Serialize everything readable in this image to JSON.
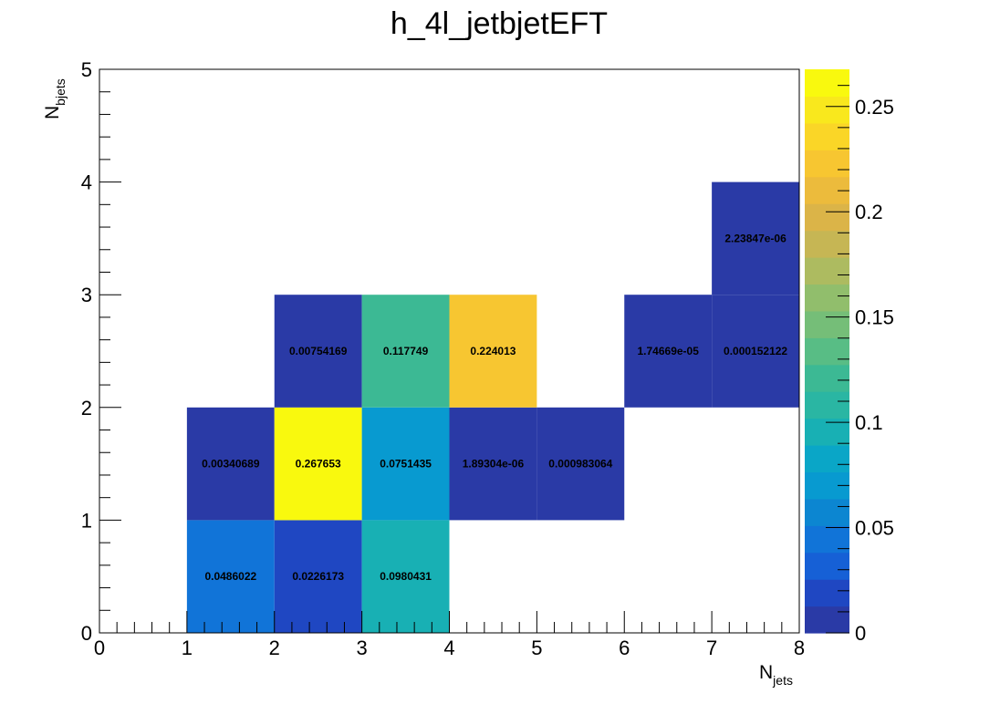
{
  "chart_data": {
    "type": "heatmap",
    "title": "h_4l_jetbjetEFT",
    "xlabel": {
      "main": "N",
      "sub": "jets"
    },
    "ylabel": {
      "main": "N",
      "sub": "bjets"
    },
    "xlim": [
      0,
      8
    ],
    "ylim": [
      0,
      5
    ],
    "x_ticks": [
      "0",
      "1",
      "2",
      "3",
      "4",
      "5",
      "6",
      "7",
      "8"
    ],
    "y_ticks": [
      "0",
      "1",
      "2",
      "3",
      "4",
      "5"
    ],
    "colorbar": {
      "range": [
        0,
        0.267653
      ],
      "ticks": [
        "0",
        "0.05",
        "0.1",
        "0.15",
        "0.2",
        "0.25"
      ],
      "tick_values": [
        0,
        0.05,
        0.1,
        0.15,
        0.2,
        0.25
      ],
      "palette": [
        "#2a3aa6",
        "#1f47c2",
        "#1660d6",
        "#1174d8",
        "#0c86d1",
        "#089ad0",
        "#0aa6c7",
        "#18b0b4",
        "#2ab6a3",
        "#3cb994",
        "#58bd85",
        "#75be78",
        "#91be6c",
        "#adbb60",
        "#c6b654",
        "#dbb448",
        "#ecbb3c",
        "#f7c631",
        "#fad627",
        "#f9e81d",
        "#f9f90e"
      ]
    },
    "cells": [
      {
        "x": 1,
        "y": 0,
        "value": 0.0486022,
        "label": "0.0486022"
      },
      {
        "x": 2,
        "y": 0,
        "value": 0.0226173,
        "label": "0.0226173"
      },
      {
        "x": 3,
        "y": 0,
        "value": 0.0980431,
        "label": "0.0980431"
      },
      {
        "x": 1,
        "y": 1,
        "value": 0.00340689,
        "label": "0.00340689"
      },
      {
        "x": 2,
        "y": 1,
        "value": 0.267653,
        "label": "0.267653"
      },
      {
        "x": 3,
        "y": 1,
        "value": 0.0751435,
        "label": "0.0751435"
      },
      {
        "x": 4,
        "y": 1,
        "value": 1.89304e-06,
        "label": "1.89304e-06"
      },
      {
        "x": 5,
        "y": 1,
        "value": 0.000983064,
        "label": "0.000983064"
      },
      {
        "x": 2,
        "y": 2,
        "value": 0.00754169,
        "label": "0.00754169"
      },
      {
        "x": 3,
        "y": 2,
        "value": 0.117749,
        "label": "0.117749"
      },
      {
        "x": 4,
        "y": 2,
        "value": 0.224013,
        "label": "0.224013"
      },
      {
        "x": 6,
        "y": 2,
        "value": 1.74669e-05,
        "label": "1.74669e-05"
      },
      {
        "x": 7,
        "y": 2,
        "value": 0.000152122,
        "label": "0.000152122"
      },
      {
        "x": 7,
        "y": 3,
        "value": 2.23847e-06,
        "label": "2.23847e-06"
      }
    ]
  }
}
